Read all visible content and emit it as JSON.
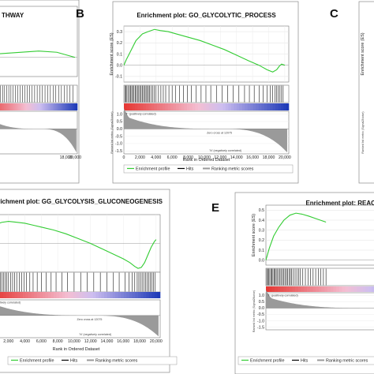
{
  "panel_letters": [
    "B",
    "C",
    "E"
  ],
  "chart_data": [
    {
      "id": "A",
      "type": "line",
      "title": "THWAY",
      "x_ticks": [
        "18,000",
        "20,000"
      ],
      "xlim": [
        0,
        20500
      ],
      "ylim": [
        -0.15,
        0.4
      ],
      "x": [
        0,
        12000,
        16000,
        18000,
        20000
      ],
      "y": [
        0.02,
        0.05,
        0.04,
        0.02,
        0.0
      ],
      "x_label": "",
      "y_label": "",
      "legend": [],
      "annotations": [],
      "hits": []
    },
    {
      "id": "B",
      "type": "line",
      "title": "Enrichment plot: GO_GLYCOLYTIC_PROCESS",
      "y_label": "Enrichment score (ES)",
      "metric_label": "Ranked list metric (Signal2Noise)",
      "x_label": "Rank in Ordered Dataset",
      "xlim": [
        0,
        20500
      ],
      "ylim": [
        -0.15,
        0.35
      ],
      "y_ticks": [
        "0.3",
        "0.2",
        "0.1",
        "0.0",
        "-0.1"
      ],
      "y_tick_values": [
        0.3,
        0.2,
        0.1,
        0.0,
        -0.1
      ],
      "metric_ticks": [
        "1.0",
        "0.5",
        "0.0",
        "-0.5",
        "-1.0",
        "-1.5"
      ],
      "metric_tick_values": [
        1.0,
        0.5,
        0.0,
        -0.5,
        -1.0,
        -1.5
      ],
      "x_ticks": [
        "0",
        "2,000",
        "4,000",
        "6,000",
        "8,000",
        "10,000",
        "12,000",
        "14,000",
        "16,000",
        "18,000",
        "20,000"
      ],
      "x_tick_values": [
        0,
        2000,
        4000,
        6000,
        8000,
        10000,
        12000,
        14000,
        16000,
        18000,
        20000
      ],
      "x": [
        0,
        300,
        800,
        1500,
        2300,
        3000,
        3800,
        4500,
        5500,
        6500,
        8000,
        9500,
        11000,
        12500,
        14000,
        15500,
        16800,
        17800,
        18500,
        19000,
        19300,
        19600,
        20000
      ],
      "y": [
        0.0,
        0.05,
        0.12,
        0.22,
        0.28,
        0.3,
        0.32,
        0.31,
        0.3,
        0.28,
        0.25,
        0.22,
        0.18,
        0.14,
        0.09,
        0.04,
        0.0,
        -0.04,
        -0.06,
        -0.04,
        -0.01,
        0.01,
        0.0
      ],
      "hits": [
        120,
        240,
        380,
        560,
        700,
        840,
        980,
        1100,
        1260,
        1400,
        1550,
        1700,
        1850,
        2000,
        2150,
        2300,
        2450,
        2600,
        2750,
        2900,
        3050,
        3200,
        3400,
        3600,
        3800,
        4000,
        4300,
        4600,
        4900,
        5200,
        5600,
        6000,
        6400,
        6900,
        7400,
        7900,
        8400,
        9000,
        9600,
        10200,
        10800,
        11500,
        12200,
        12900,
        13600,
        14300,
        15000,
        15600,
        16200,
        16800,
        17300,
        17800,
        18200,
        18500,
        18800,
        19000,
        19200,
        19400,
        19600,
        19800
      ],
      "correlation_labels": [
        "'T' (positively correlated)",
        "'N' (negatively correlated)"
      ],
      "annotations": [
        "Zero cross at 12075"
      ],
      "zero_cross": 12075,
      "legend": [
        "Enrichment profile",
        "Hits",
        "Ranking metric scores"
      ]
    },
    {
      "id": "C",
      "type": "line",
      "title": "",
      "y_label": "Enrichment score (ES)",
      "metric_label": "Ranked list metric (Signal2Noise)",
      "x_label": "",
      "legend": [],
      "annotations": [],
      "hits": []
    },
    {
      "id": "D",
      "type": "line",
      "title": "Enrichment plot: GG_GLYCOLYSIS_GLUCONEOGENESIS",
      "x_label": "Rank in Ordered Dataset",
      "xlim": [
        0,
        20500
      ],
      "ylim": [
        -0.3,
        0.3
      ],
      "x_ticks": [
        "2,000",
        "4,000",
        "6,000",
        "8,000",
        "10,000",
        "12,000",
        "14,000",
        "16,000",
        "18,000",
        "20,000"
      ],
      "x_tick_values": [
        2000,
        4000,
        6000,
        8000,
        10000,
        12000,
        14000,
        16000,
        18000,
        20000
      ],
      "x": [
        0,
        500,
        1200,
        2000,
        3000,
        4000,
        5000,
        6000,
        7500,
        9000,
        10500,
        12000,
        13500,
        15000,
        16000,
        16800,
        17400,
        17800,
        18200,
        18600,
        19000,
        19400,
        19800,
        20000
      ],
      "y": [
        0.17,
        0.2,
        0.22,
        0.23,
        0.22,
        0.21,
        0.19,
        0.17,
        0.14,
        0.1,
        0.05,
        0.0,
        -0.06,
        -0.12,
        -0.16,
        -0.2,
        -0.24,
        -0.26,
        -0.25,
        -0.2,
        -0.12,
        -0.04,
        0.02,
        0.04
      ],
      "hits": [
        150,
        300,
        450,
        600,
        800,
        1000,
        1200,
        1400,
        1600,
        1800,
        2000,
        2250,
        2500,
        2750,
        3000,
        3300,
        3600,
        3900,
        4200,
        4600,
        5000,
        5500,
        6000,
        6600,
        7200,
        7800,
        8500,
        9200,
        10000,
        10800,
        11600,
        12400,
        13200,
        14000,
        14800,
        15500,
        16200,
        16700,
        17100,
        17400,
        17700,
        17900,
        18100,
        18300,
        18500,
        18700,
        18900,
        19100,
        19300,
        19500,
        19700,
        19900
      ],
      "correlation_labels": [
        "(positively correlated)",
        "'N' (negatively correlated)"
      ],
      "annotations": [
        "Zero cross at 12075"
      ],
      "zero_cross": 12075,
      "legend": [
        "Enrichment profile",
        "Hits",
        "Ranking metric scores"
      ]
    },
    {
      "id": "E",
      "type": "line",
      "title": "Enrichment plot: REACTOME_G",
      "y_label": "Enrichment score (ES)",
      "metric_label": "Ranked list metric (Signal2Noise)",
      "x_label": "",
      "xlim": [
        0,
        20500
      ],
      "ylim": [
        -0.05,
        0.55
      ],
      "y_ticks": [
        "0.5",
        "0.4",
        "0.3",
        "0.2",
        "0.1",
        "0.0"
      ],
      "y_tick_values": [
        0.5,
        0.4,
        0.3,
        0.2,
        0.1,
        0.0
      ],
      "metric_ticks": [
        "1.0",
        "0.5",
        "0.0",
        "-0.5",
        "-1.0",
        "-1.5"
      ],
      "metric_tick_values": [
        1.0,
        0.5,
        0.0,
        -0.5,
        -1.0,
        -1.5
      ],
      "x": [
        0,
        400,
        900,
        1500,
        2100,
        2800,
        3500,
        4200,
        5000,
        6000,
        7000
      ],
      "y": [
        0.0,
        0.12,
        0.24,
        0.33,
        0.4,
        0.45,
        0.47,
        0.46,
        0.44,
        0.41,
        0.38
      ],
      "hits": [
        100,
        200,
        320,
        450,
        580,
        700,
        820,
        950,
        1080,
        1200,
        1350,
        1500,
        1650,
        1800,
        1950,
        2100,
        2250,
        2400,
        2550,
        2700,
        2850,
        3000,
        3200,
        3400,
        3600,
        3800,
        4000,
        4300,
        4600,
        4900,
        5200,
        5500,
        5800,
        6100,
        6400,
        6700,
        7000
      ],
      "correlation_labels": [
        "'T' (positively correlated)"
      ],
      "annotations": [],
      "legend": [
        "Enrichment profile",
        "Hits",
        "Ranking metric scores"
      ]
    }
  ],
  "colors": {
    "profile": "#33cc33",
    "hits": "#000000",
    "metric": "#9a9a9a",
    "pos": "#e53935",
    "neg": "#1e3ab8"
  }
}
